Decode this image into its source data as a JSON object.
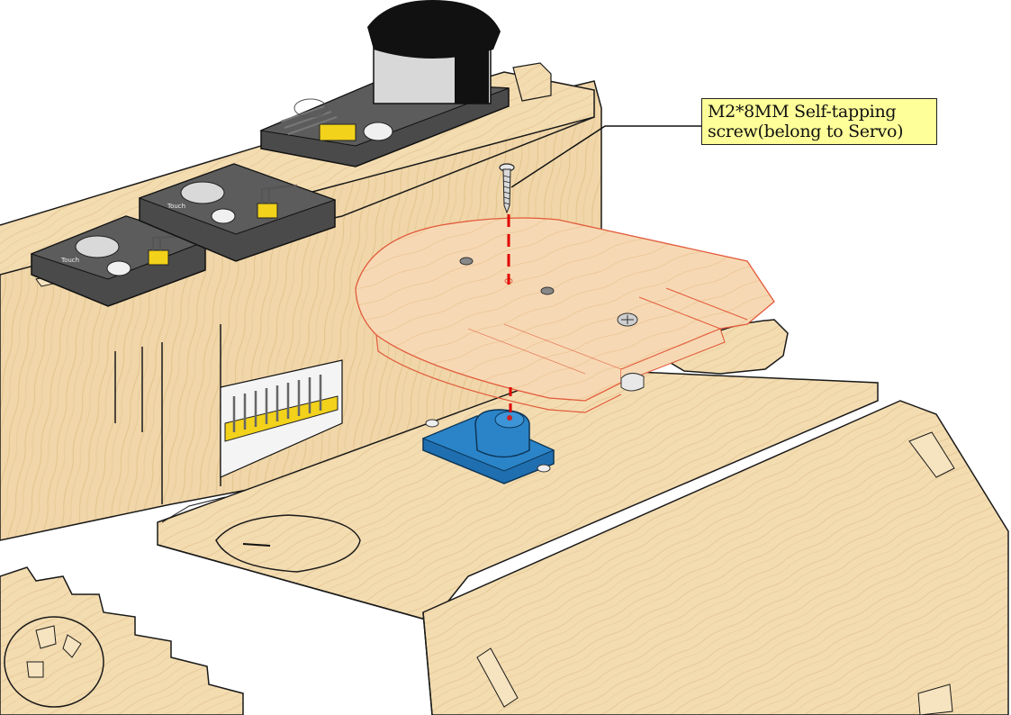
{
  "callout": {
    "line1": "M2*8MM Self-tapping",
    "line2": "screw(belong to Servo)"
  },
  "module_labels": {
    "touch_1": "Touch",
    "touch_2": "Touch"
  },
  "colors": {
    "wood": "#f3dcb0",
    "wood_dark": "#e6c690",
    "outline": "#1a1a1a",
    "highlight_part": "#f7caa0",
    "highlight_outline": "#e25a3c",
    "assembly_line": "#e00000",
    "servo_blue": "#1f6fb0",
    "module_dark": "#4a4a4a",
    "header_yellow": "#f2d21a",
    "callout_bg": "#ffff99"
  },
  "icons": {
    "screw": "screw-icon",
    "servo": "servo-icon",
    "touch_pad": "touch-pad-icon"
  }
}
